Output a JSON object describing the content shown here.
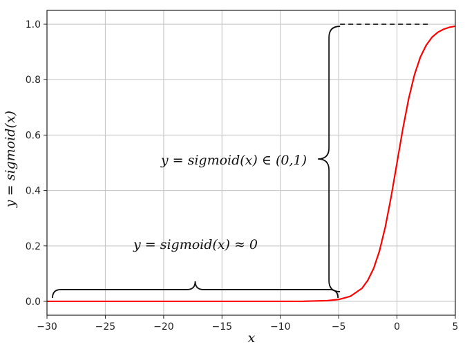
{
  "chart_data": {
    "type": "line",
    "title": "",
    "xlabel": "x",
    "ylabel": "y = sigmoid(x)",
    "xlim": [
      -30,
      5
    ],
    "ylim": [
      -0.05,
      1.05
    ],
    "x_ticks": [
      -30,
      -25,
      -20,
      -15,
      -10,
      -5,
      0,
      5
    ],
    "x_tick_labels": [
      "−30",
      "−25",
      "−20",
      "−15",
      "−10",
      "−5",
      "0",
      "5"
    ],
    "y_ticks": [
      0.0,
      0.2,
      0.4,
      0.6,
      0.8,
      1.0
    ],
    "y_tick_labels": [
      "0.0",
      "0.2",
      "0.4",
      "0.6",
      "0.8",
      "1.0"
    ],
    "grid": true,
    "series": [
      {
        "function": "sigmoid",
        "color": "#ff0000",
        "x": [
          -30,
          -25,
          -20,
          -15,
          -10,
          -8,
          -6,
          -5,
          -4,
          -3,
          -2.5,
          -2,
          -1.5,
          -1,
          -0.5,
          0,
          0.5,
          1,
          1.5,
          2,
          2.5,
          3,
          3.5,
          4,
          4.5,
          5
        ],
        "y": [
          0.0,
          0.0,
          0.0,
          0.0,
          5e-05,
          0.00034,
          0.0025,
          0.0067,
          0.018,
          0.047,
          0.076,
          0.119,
          0.182,
          0.269,
          0.378,
          0.5,
          0.622,
          0.731,
          0.818,
          0.881,
          0.924,
          0.953,
          0.971,
          0.982,
          0.989,
          0.993
        ]
      }
    ],
    "annotations": [
      {
        "text": "y = sigmoid(x) ≈ 0",
        "brace": "horizontal",
        "x_range": [
          -30,
          -5
        ],
        "y": 0.0
      },
      {
        "text": "y = sigmoid(x) ∈ (0,1)",
        "brace": "vertical",
        "x": -5,
        "y_range": [
          0.0,
          1.0
        ]
      }
    ],
    "reference_line": {
      "style": "dashed",
      "y": 1.0,
      "x_range": [
        -5,
        0
      ]
    }
  }
}
